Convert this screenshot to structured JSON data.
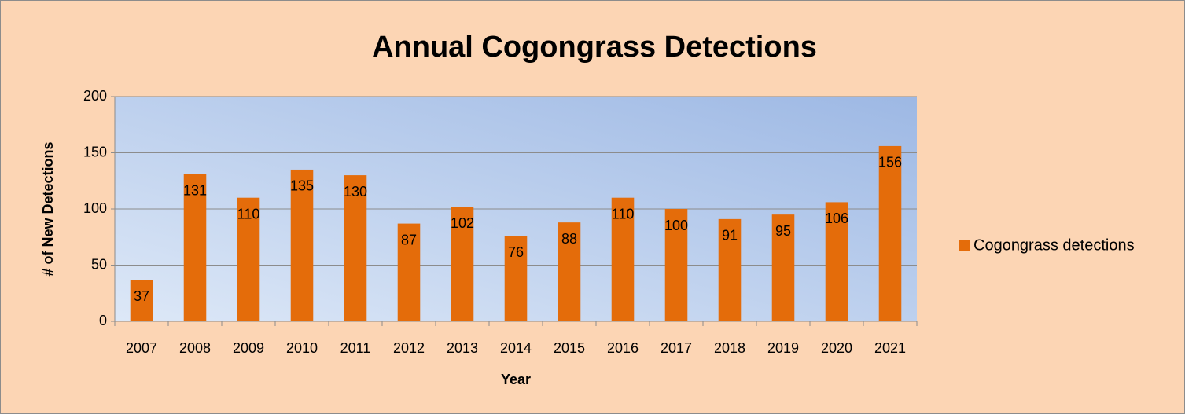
{
  "chart_data": {
    "type": "bar",
    "title": "Annual Cogongrass Detections",
    "x_label": "Year",
    "y_label": "# of New Detections",
    "categories": [
      "2007",
      "2008",
      "2009",
      "2010",
      "2011",
      "2012",
      "2013",
      "2014",
      "2015",
      "2016",
      "2017",
      "2018",
      "2019",
      "2020",
      "2021"
    ],
    "series": [
      {
        "name": "Cogongrass detections",
        "color": "#e46c0a",
        "values": [
          37,
          131,
          110,
          135,
          130,
          87,
          102,
          76,
          88,
          110,
          100,
          91,
          95,
          106,
          156
        ]
      }
    ],
    "ylim": [
      0,
      200
    ],
    "yticks": [
      0,
      50,
      100,
      150,
      200
    ],
    "grid": true,
    "legend": "right"
  }
}
